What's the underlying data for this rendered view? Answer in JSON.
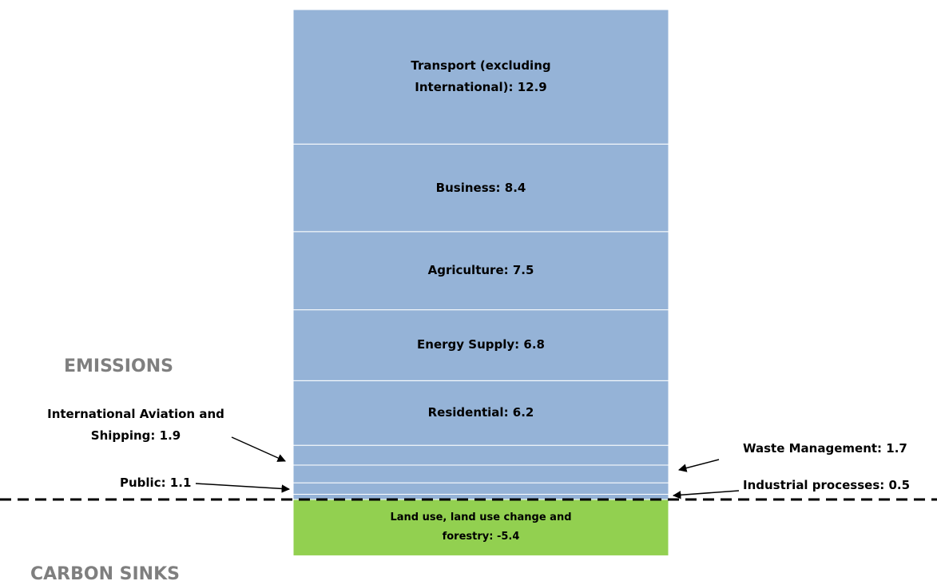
{
  "chart_data": {
    "type": "bar",
    "annotations": [
      "EMISSIONS",
      "CARBON SINKS"
    ],
    "series": [
      {
        "values": [
          0.5
        ],
        "value_labels": [
          "Industrial processes: 0.5"
        ],
        "color": "#95b3d7"
      },
      {
        "values": [
          1.1
        ],
        "value_labels": [
          "Public: 1.1"
        ],
        "color": "#95b3d7"
      },
      {
        "values": [
          1.7
        ],
        "value_labels": [
          "Waste Management: 1.7"
        ],
        "color": "#95b3d7"
      },
      {
        "values": [
          1.9
        ],
        "value_labels": [
          "International Aviation and Shipping: 1.9"
        ],
        "color": "#95b3d7"
      },
      {
        "values": [
          6.2
        ],
        "value_labels": [
          "Residential: 6.2"
        ],
        "color": "#95b3d7"
      },
      {
        "values": [
          6.8
        ],
        "value_labels": [
          "Energy Supply: 6.8"
        ],
        "color": "#95b3d7"
      },
      {
        "values": [
          7.5
        ],
        "value_labels": [
          "Agriculture: 7.5"
        ],
        "color": "#95b3d7"
      },
      {
        "values": [
          8.4
        ],
        "value_labels": [
          "Business: 8.4"
        ],
        "color": "#95b3d7"
      },
      {
        "values": [
          12.9
        ],
        "value_labels": [
          "Transport (excluding International): 12.9"
        ],
        "color": "#95b3d7"
      },
      {
        "values": [
          -5.4
        ],
        "value_labels": [
          "Land use, land use change and forestry: -5.4"
        ],
        "color": "#92d050"
      }
    ]
  }
}
